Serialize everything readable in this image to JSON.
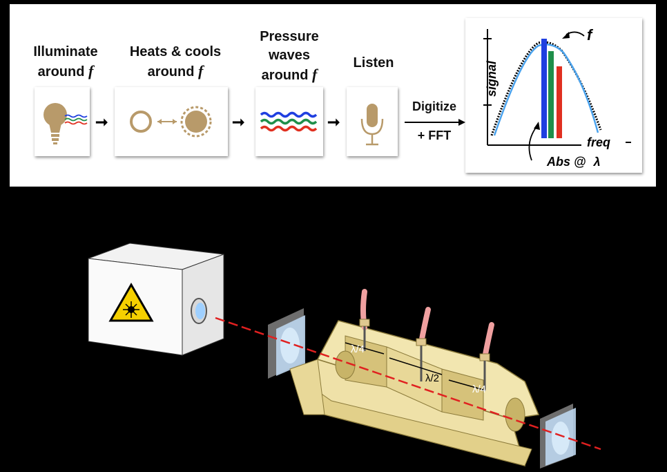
{
  "steps": [
    {
      "label_line1": "Illuminate",
      "label_line2": "around",
      "var": "f"
    },
    {
      "label_line1": "Heats & cools",
      "label_line2": "around",
      "var": "f"
    },
    {
      "label_line1": "Pressure",
      "label_line2": "waves",
      "label_line3": "around",
      "var": "f"
    },
    {
      "label_line1": "Listen"
    }
  ],
  "digitize": {
    "line1": "Digitize",
    "line2": "+ FFT"
  },
  "spectrum": {
    "y_label": "signal",
    "x_label": "freq",
    "peak_label": "f",
    "abs_label": "Abs @",
    "lambda_symbol": "λ"
  },
  "cell": {
    "quarter_left": "λ/4",
    "half": "λ/2",
    "quarter_right": "λ/4"
  },
  "colors": {
    "gold": "#b89a6a",
    "blue": "#1f3fe0",
    "green": "#1f8f4a",
    "red": "#e03020",
    "brass": "#f2e6b0",
    "beam": "#e02020",
    "fiber": "#f0a0a0"
  }
}
